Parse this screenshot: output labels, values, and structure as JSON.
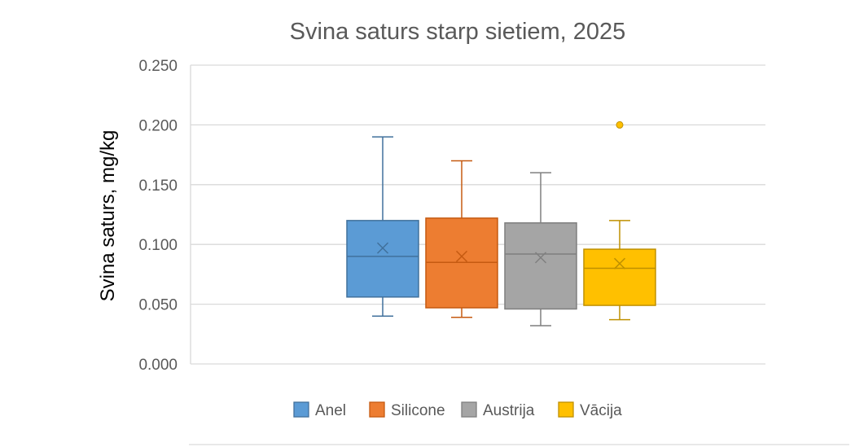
{
  "chart_data": {
    "type": "box",
    "title": "Svina saturs starp sietiem, 2025",
    "xlabel": "",
    "ylabel": "Svina saturs, mg/kg",
    "ylim": [
      0,
      0.25
    ],
    "yticks": [
      "0.000",
      "0.050",
      "0.100",
      "0.150",
      "0.200",
      "0.250"
    ],
    "grid": true,
    "legend_position": "bottom",
    "series": [
      {
        "name": "Anel",
        "color": "#5B9BD5",
        "edge": "#41719C",
        "min": 0.04,
        "q1": 0.056,
        "median": 0.09,
        "q3": 0.12,
        "max": 0.19,
        "mean": 0.097,
        "outliers": []
      },
      {
        "name": "Silicone",
        "color": "#ED7D31",
        "edge": "#C55A11",
        "min": 0.039,
        "q1": 0.047,
        "median": 0.085,
        "q3": 0.122,
        "max": 0.17,
        "mean": 0.09,
        "outliers": []
      },
      {
        "name": "Austrija",
        "color": "#A5A5A5",
        "edge": "#7F7F7F",
        "min": 0.032,
        "q1": 0.046,
        "median": 0.092,
        "q3": 0.118,
        "max": 0.16,
        "mean": 0.089,
        "outliers": []
      },
      {
        "name": "Vācija",
        "color": "#FFC000",
        "edge": "#BF9000",
        "min": 0.037,
        "q1": 0.049,
        "median": 0.08,
        "q3": 0.096,
        "max": 0.12,
        "mean": 0.084,
        "outliers": [
          0.2
        ]
      }
    ]
  }
}
